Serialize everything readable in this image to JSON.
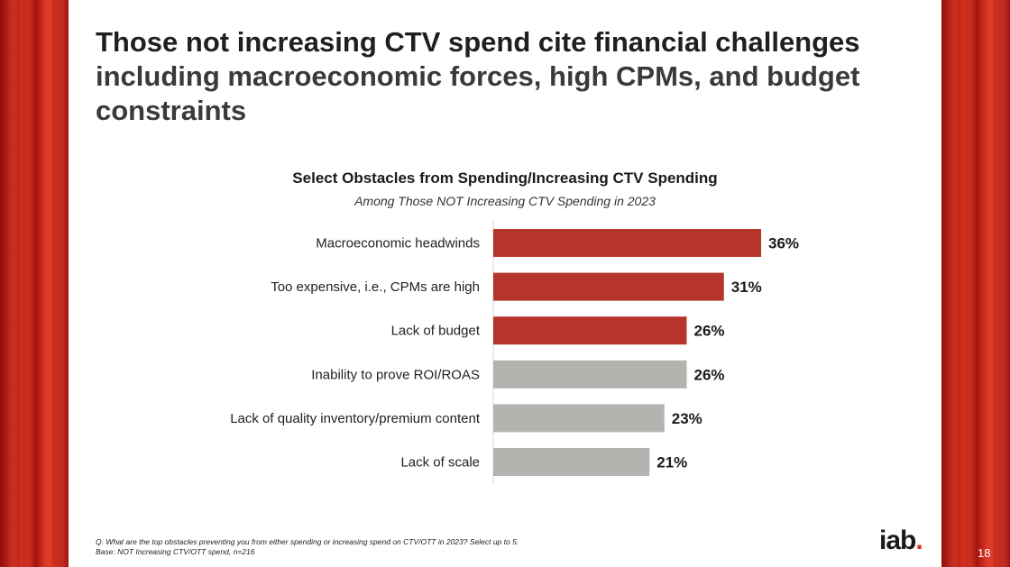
{
  "slide": {
    "headline_bold": "Those not increasing CTV spend cite financial challenges",
    "headline_rest": "including macroeconomic forces, high CPMs, and budget constraints",
    "footnote_question": "Q. What are the top obstacles preventing you from either spending or increasing spend on CTV/OTT in 2023? Select up to 5.",
    "footnote_base": "Base: NOT Increasing CTV/OTT spend, n=216",
    "logo_text": "iab",
    "logo_dot": ".",
    "page_number": "18"
  },
  "colors": {
    "highlight": "#b5352a",
    "neutral": "#b3b3af",
    "accent_red": "#d8301f"
  },
  "chart_data": {
    "type": "bar",
    "orientation": "horizontal",
    "title": "Select Obstacles from Spending/Increasing CTV Spending",
    "subtitle": "Among Those NOT Increasing CTV Spending in 2023",
    "categories": [
      "Macroeconomic headwinds",
      "Too expensive, i.e., CPMs are high",
      "Lack of budget",
      "Inability to prove ROI/ROAS",
      "Lack of quality inventory/premium content",
      "Lack of scale"
    ],
    "values": [
      36,
      31,
      26,
      26,
      23,
      21
    ],
    "value_labels": [
      "36%",
      "31%",
      "26%",
      "26%",
      "23%",
      "21%"
    ],
    "highlighted": [
      true,
      true,
      true,
      false,
      false,
      false
    ],
    "xlim": [
      0,
      40
    ],
    "unit": "%"
  }
}
